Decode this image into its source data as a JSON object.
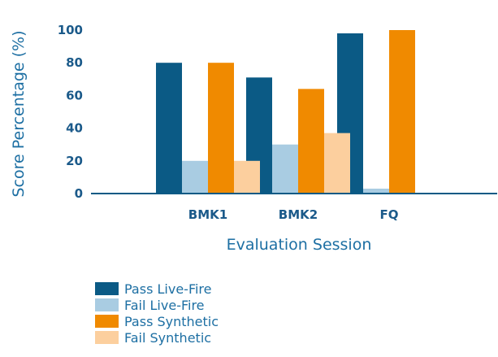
{
  "chart_data": {
    "type": "bar",
    "categories": [
      "BMK1",
      "BMK2",
      "FQ"
    ],
    "series": [
      {
        "name": "Pass Live-Fire",
        "color": "#0b5a85",
        "values": [
          80,
          71,
          98
        ]
      },
      {
        "name": "Fail Live-Fire",
        "color": "#a9cce2",
        "values": [
          20,
          30,
          3
        ]
      },
      {
        "name": "Pass Synthetic",
        "color": "#f08a00",
        "values": [
          80,
          64,
          100
        ]
      },
      {
        "name": "Fail Synthetic",
        "color": "#fccf9e",
        "values": [
          20,
          37,
          0
        ]
      }
    ],
    "title": "",
    "xlabel": "Evaluation Session",
    "ylabel": "Score Percentage (%)",
    "ylim": [
      0,
      100
    ],
    "yticks": [
      "0",
      "20",
      "40",
      "60",
      "80",
      "100"
    ],
    "grid": false,
    "legend_position": "bottom-left"
  }
}
